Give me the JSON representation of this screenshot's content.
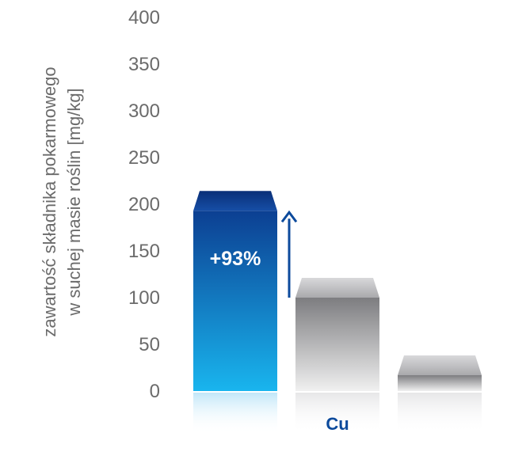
{
  "chart_data": {
    "type": "bar",
    "title": "",
    "ylabel_line1": "zawartość składnika pokarmowego",
    "ylabel_line2": "w suchej masie roślin [mg/kg]",
    "yticks": [
      0,
      50,
      100,
      150,
      200,
      250,
      300,
      350,
      400
    ],
    "ylim": [
      0,
      400
    ],
    "category_label": "Cu",
    "values": [
      193,
      100,
      17
    ],
    "annotation": "+93%",
    "grid": false,
    "colors": {
      "highlight_top": "#0c3f92",
      "highlight_bottom": "#19b5ee",
      "gray_top": "#7d7d80",
      "gray_bottom": "#f0f0f0",
      "arrow": "#0c4a9c",
      "category_text": "#0c4a9c",
      "tick_text": "#6b6b6b"
    }
  }
}
